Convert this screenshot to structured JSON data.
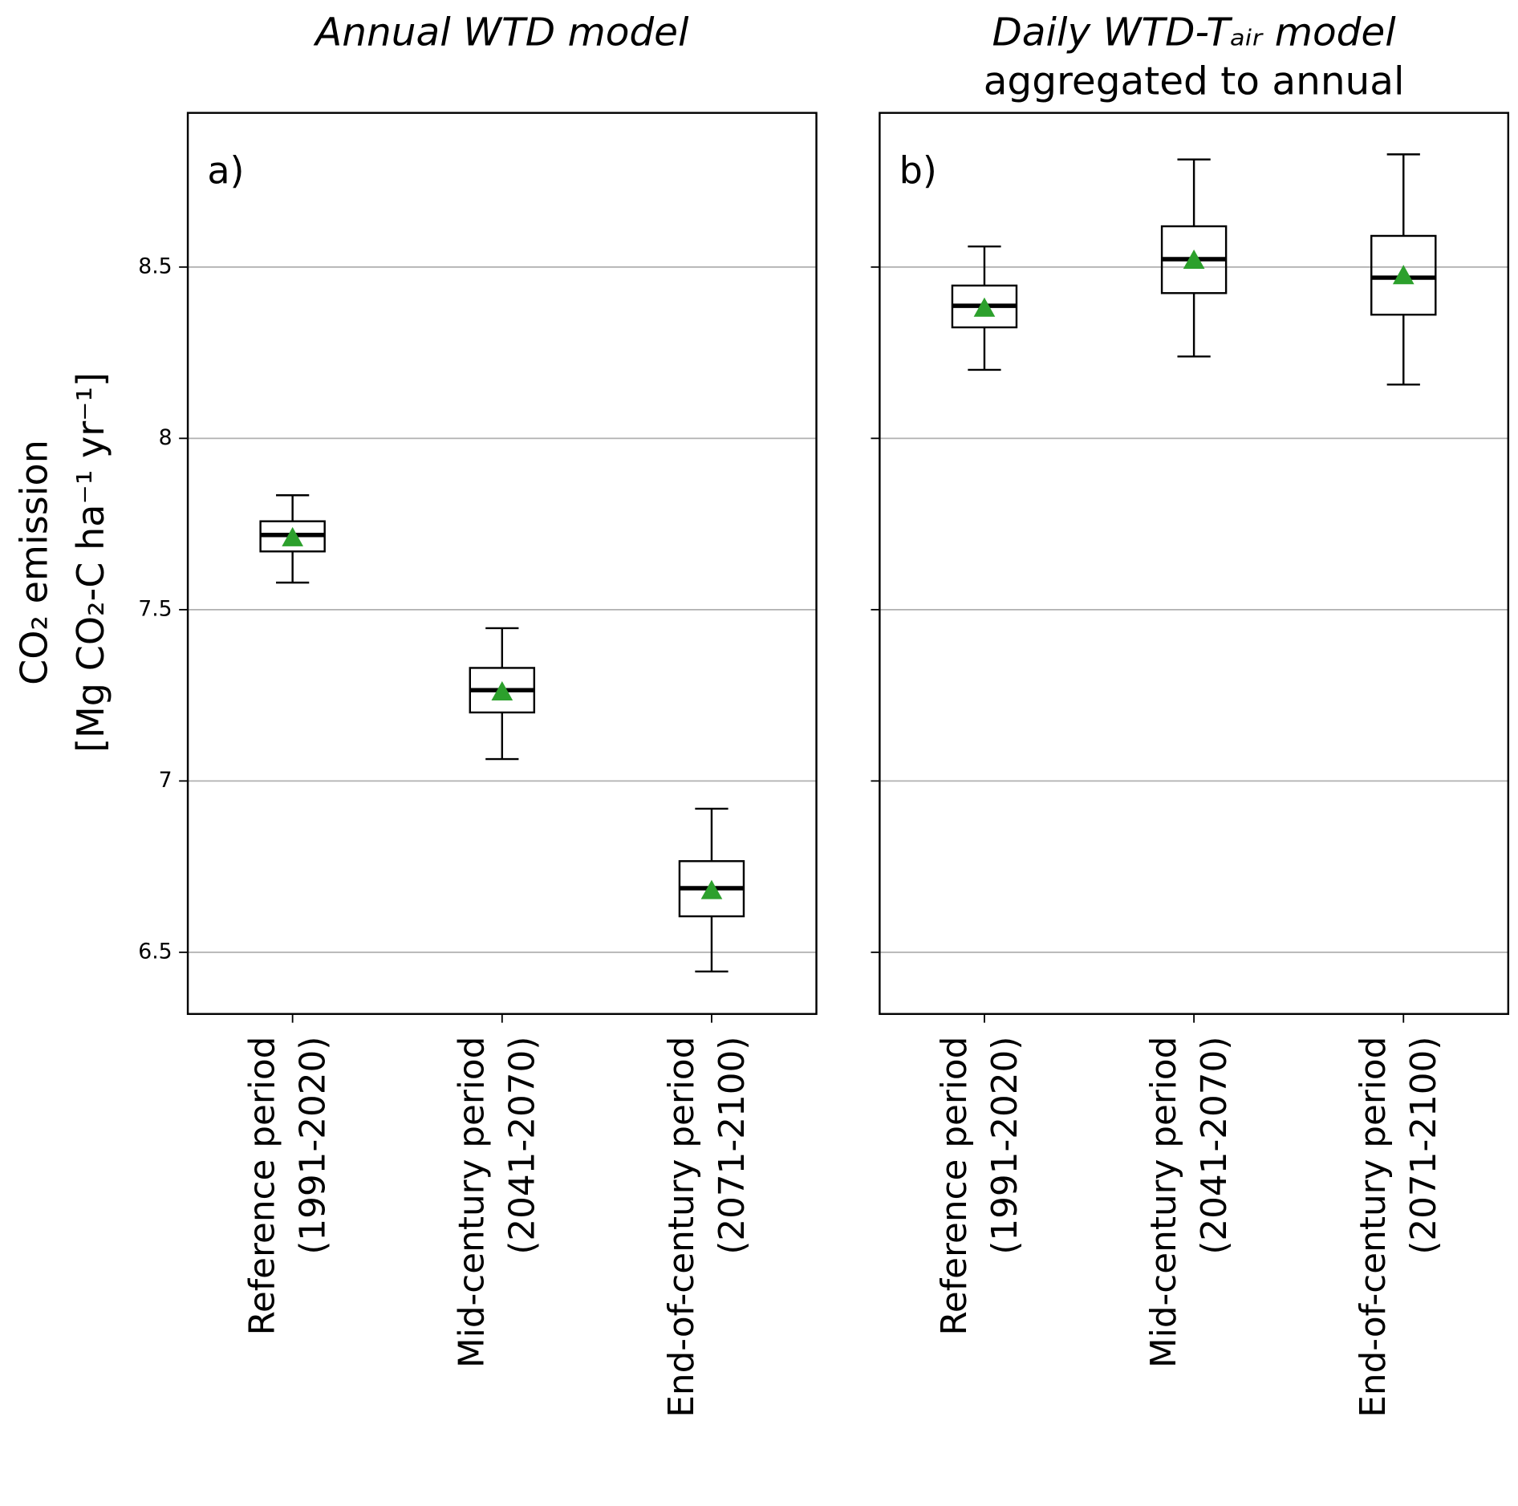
{
  "chart_data": [
    {
      "type": "box",
      "title": [
        "Annual WTD model"
      ],
      "panel_label": "a)",
      "y_label": [
        "CO₂ emission",
        "[Mg CO₂-C ha⁻¹ yr⁻¹]"
      ],
      "categories": [
        [
          "Reference period",
          "(1991-2020)"
        ],
        [
          "Mid-century period",
          "(2041-2070)"
        ],
        [
          "End-of-century period",
          "(2071-2100)"
        ]
      ],
      "boxes": [
        {
          "whisker_low": 7.579,
          "q1": 7.67,
          "median": 7.718,
          "q3": 7.758,
          "whisker_high": 7.834,
          "mean": 7.71
        },
        {
          "whisker_low": 7.064,
          "q1": 7.2,
          "median": 7.265,
          "q3": 7.33,
          "whisker_high": 7.446,
          "mean": 7.26
        },
        {
          "whisker_low": 6.444,
          "q1": 6.605,
          "median": 6.687,
          "q3": 6.766,
          "whisker_high": 6.919,
          "mean": 6.68
        }
      ],
      "mean_color": "#2ca02c",
      "ylim": [
        6.32,
        8.95
      ],
      "yticks": [
        6.5,
        7.0,
        7.5,
        8.0,
        8.5
      ],
      "show_ytick_labels": true,
      "grid": true
    },
    {
      "type": "box",
      "title": [
        "Daily WTD-Tₐᵢᵣ model",
        "aggregated to annual"
      ],
      "panel_label": "b)",
      "categories": [
        [
          "Reference period",
          "(1991-2020)"
        ],
        [
          "Mid-century period",
          "(2041-2070)"
        ],
        [
          "End-of-century period",
          "(2071-2100)"
        ]
      ],
      "boxes": [
        {
          "whisker_low": 8.2,
          "q1": 8.324,
          "median": 8.387,
          "q3": 8.446,
          "whisker_high": 8.56,
          "mean": 8.38
        },
        {
          "whisker_low": 8.239,
          "q1": 8.424,
          "median": 8.523,
          "q3": 8.619,
          "whisker_high": 8.814,
          "mean": 8.52
        },
        {
          "whisker_low": 8.157,
          "q1": 8.361,
          "median": 8.469,
          "q3": 8.591,
          "whisker_high": 8.829,
          "mean": 8.475
        }
      ],
      "mean_color": "#2ca02c",
      "ylim": [
        6.32,
        8.95
      ],
      "yticks": [
        6.5,
        7.0,
        7.5,
        8.0,
        8.5
      ],
      "show_ytick_labels": false,
      "grid": true
    }
  ]
}
